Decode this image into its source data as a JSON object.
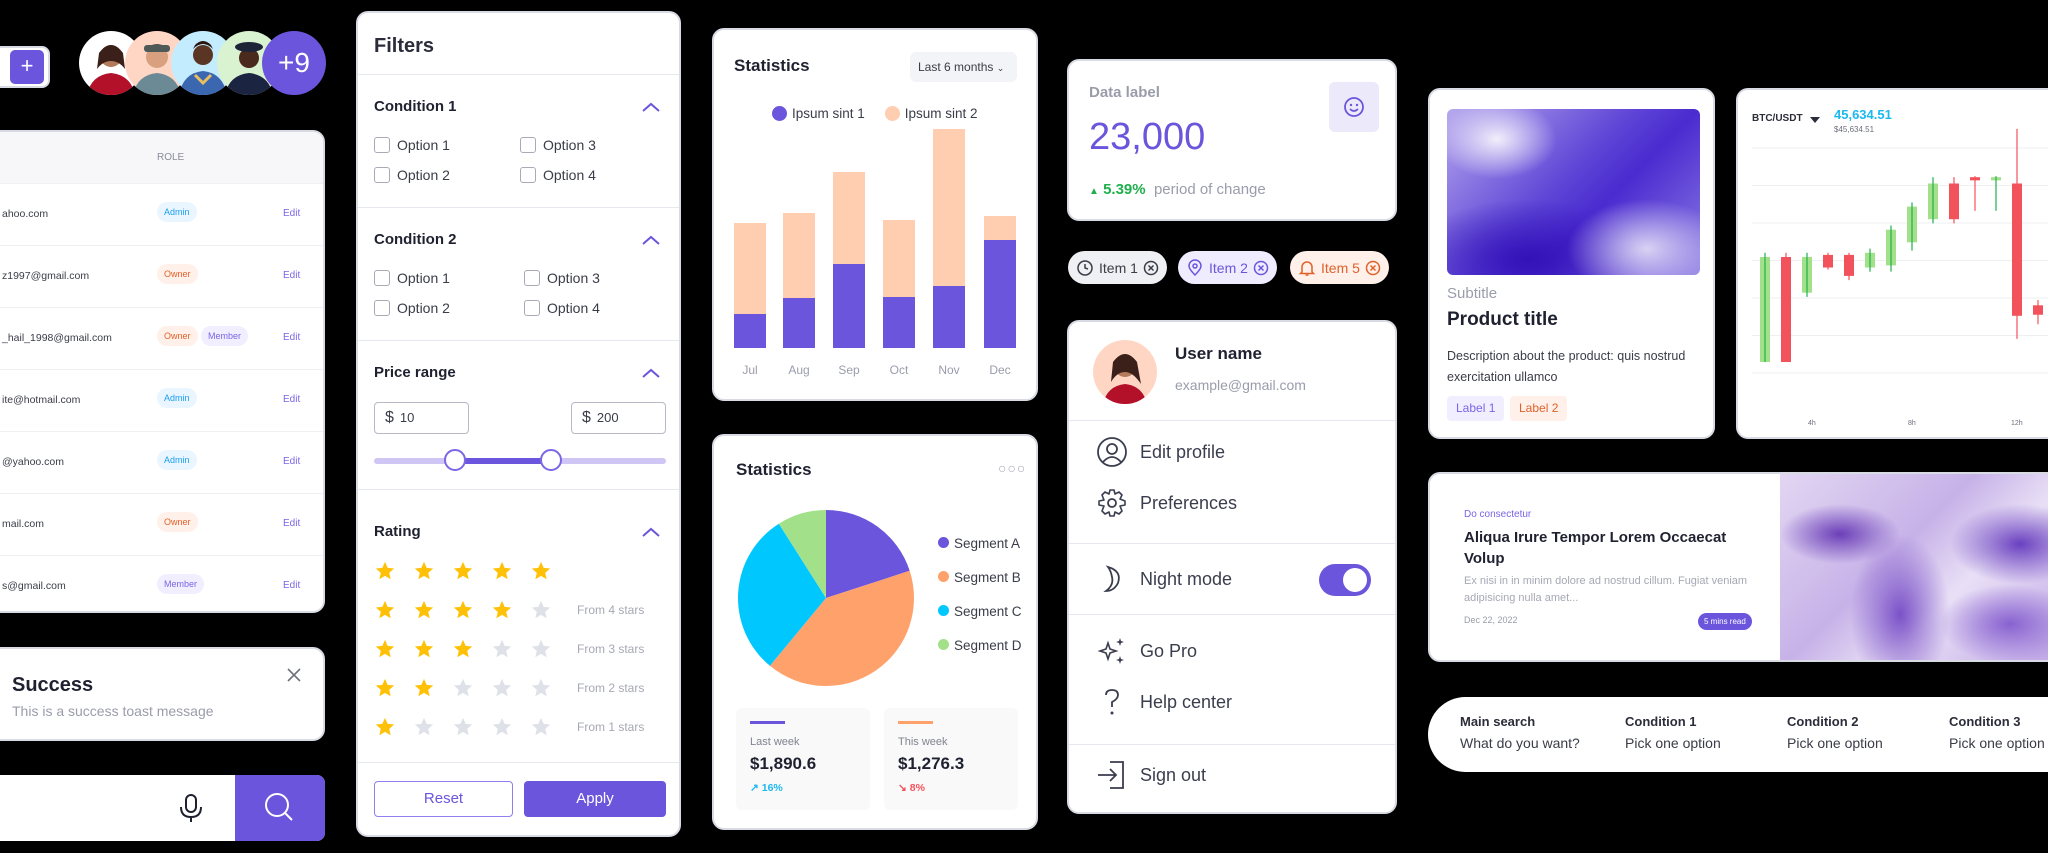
{
  "avatars": {
    "more_count": "+9",
    "add_button": "+",
    "bg_colors": [
      "#ffffff",
      "#ffd6c4",
      "#c4ecff",
      "#d9f2cf"
    ]
  },
  "users_table": {
    "header": {
      "role": "ROLE"
    },
    "rows": [
      {
        "email": "ahoo.com",
        "roles": [
          "Admin"
        ],
        "action": "Edit"
      },
      {
        "email": "z1997@gmail.com",
        "roles": [
          "Owner"
        ],
        "action": "Edit"
      },
      {
        "email": "_hail_1998@gmail.com",
        "roles": [
          "Owner",
          "Member"
        ],
        "action": "Edit"
      },
      {
        "email": "ite@hotmail.com",
        "roles": [
          "Admin"
        ],
        "action": "Edit"
      },
      {
        "email": "@yahoo.com",
        "roles": [
          "Admin"
        ],
        "action": "Edit"
      },
      {
        "email": "mail.com",
        "roles": [
          "Owner"
        ],
        "action": "Edit"
      },
      {
        "email": "s@gmail.com",
        "roles": [
          "Member"
        ],
        "action": "Edit"
      }
    ]
  },
  "toast": {
    "title": "Success",
    "message": "This is a success toast message"
  },
  "filters": {
    "title": "Filters",
    "condition1": {
      "label": "Condition 1",
      "options": [
        "Option 1",
        "Option 2",
        "Option 3",
        "Option 4"
      ]
    },
    "condition2": {
      "label": "Condition 2",
      "options": [
        "Option 1",
        "Option 2",
        "Option 3",
        "Option 4"
      ]
    },
    "price": {
      "label": "Price range",
      "currency": "$",
      "min": "10",
      "max": "200"
    },
    "rating": {
      "label": "Rating",
      "rows": [
        {
          "stars": 5,
          "label": ""
        },
        {
          "stars": 4,
          "label": "From 4 stars"
        },
        {
          "stars": 3,
          "label": "From 3 stars"
        },
        {
          "stars": 2,
          "label": "From 2 stars"
        },
        {
          "stars": 1,
          "label": "From 1 stars"
        }
      ]
    },
    "reset": "Reset",
    "apply": "Apply"
  },
  "bar_card": {
    "title": "Statistics",
    "range": "Last 6 months"
  },
  "pie_card": {
    "title": "Statistics",
    "last_week": {
      "label": "Last week",
      "value": "$1,890.6",
      "change": "16%",
      "color": "#6b55dc"
    },
    "this_week": {
      "label": "This week",
      "value": "$1,276.3",
      "change": "8%",
      "color": "#ffa16b"
    }
  },
  "chart_data": [
    {
      "type": "bar",
      "stacked": true,
      "title": "Statistics",
      "categories": [
        "Jul",
        "Aug",
        "Sep",
        "Oct",
        "Nov",
        "Dec"
      ],
      "series": [
        {
          "name": "Ipsum sint 1",
          "color": "#6b55dc",
          "values": [
            30,
            44,
            74,
            45,
            54,
            95
          ]
        },
        {
          "name": "Ipsum sint 2",
          "color": "#ffcdb0",
          "values": [
            80,
            74,
            80,
            67,
            138,
            21
          ]
        }
      ],
      "grid": false,
      "legend_position": "top"
    },
    {
      "type": "pie",
      "title": "Statistics",
      "labels": [
        "Segment A",
        "Segment B",
        "Segment C",
        "Segment D"
      ],
      "values": [
        20,
        41,
        30,
        9
      ],
      "colors": [
        "#6b55dc",
        "#ffa16b",
        "#00c8ff",
        "#a3e08a"
      ],
      "legend_position": "right"
    },
    {
      "type": "candlestick",
      "title": "BTC/USDT",
      "price": "45,634.51",
      "price_sub": "$45,634.51",
      "x_ticks": [
        "4h",
        "8h",
        "12h"
      ],
      "candles": [
        {
          "o": 2,
          "c": 7,
          "h": 7.2,
          "l": 2,
          "dir": "up"
        },
        {
          "o": 7,
          "c": 2,
          "h": 7.2,
          "l": 2,
          "dir": "down"
        },
        {
          "o": 5.3,
          "c": 7,
          "h": 7.2,
          "l": 5.1,
          "dir": "up"
        },
        {
          "o": 7.1,
          "c": 6.5,
          "h": 7.2,
          "l": 6.4,
          "dir": "down"
        },
        {
          "o": 7.1,
          "c": 6.1,
          "h": 7.2,
          "l": 5.9,
          "dir": "down"
        },
        {
          "o": 6.5,
          "c": 7.2,
          "h": 7.4,
          "l": 6.3,
          "dir": "up"
        },
        {
          "o": 6.6,
          "c": 8.3,
          "h": 8.5,
          "l": 6.3,
          "dir": "up"
        },
        {
          "o": 7.7,
          "c": 9.4,
          "h": 9.6,
          "l": 7.3,
          "dir": "up"
        },
        {
          "o": 8.8,
          "c": 10.5,
          "h": 10.8,
          "l": 8.6,
          "dir": "up"
        },
        {
          "o": 10.5,
          "c": 8.8,
          "h": 10.8,
          "l": 8.6,
          "dir": "down"
        },
        {
          "o": 10.8,
          "c": 10.65,
          "h": 10.85,
          "l": 9.2,
          "dir": "down"
        },
        {
          "o": 10.65,
          "c": 10.8,
          "h": 10.85,
          "l": 9.2,
          "dir": "up"
        },
        {
          "o": 10.5,
          "c": 4.2,
          "h": 13.1,
          "l": 3.1,
          "dir": "down"
        },
        {
          "o": 4.7,
          "c": 4.25,
          "h": 4.95,
          "l": 3.8,
          "dir": "down"
        }
      ],
      "up_color": "#a3e08a",
      "down_color": "#f2525b"
    }
  ],
  "data_label": {
    "label": "Data label",
    "value": "23,000",
    "change": "5.39%",
    "change_text": "period of change"
  },
  "chips": [
    {
      "label": "Item 1",
      "icon": "history-icon"
    },
    {
      "label": "Item 2",
      "icon": "location-pin-icon"
    },
    {
      "label": "Item 5",
      "icon": "bell-icon"
    }
  ],
  "user_menu": {
    "name": "User name",
    "email": "example@gmail.com",
    "items": {
      "edit_profile": "Edit profile",
      "preferences": "Preferences",
      "night_mode": "Night mode",
      "go_pro": "Go Pro",
      "help": "Help center",
      "sign_out": "Sign out"
    },
    "night_mode_on": true
  },
  "product": {
    "subtitle": "Subtitle",
    "title": "Product title",
    "description": "Description about the product: quis nostrud exercitation ullamco",
    "labels": [
      "Label 1",
      "Label 2"
    ]
  },
  "article": {
    "category": "Do consectetur",
    "title": "Aliqua Irure Tempor Lorem Occaecat Volup",
    "excerpt": "Ex nisi in in minim dolore ad nostrud cillum. Fugiat veniam adipisicing nulla amet...",
    "date": "Dec 22, 2022",
    "read_time": "5 mins read"
  },
  "search_pills": [
    {
      "key": "Main search",
      "value": "What do you want?"
    },
    {
      "key": "Condition 1",
      "value": "Pick one option"
    },
    {
      "key": "Condition 2",
      "value": "Pick one option"
    },
    {
      "key": "Condition 3",
      "value": "Pick one option"
    }
  ]
}
